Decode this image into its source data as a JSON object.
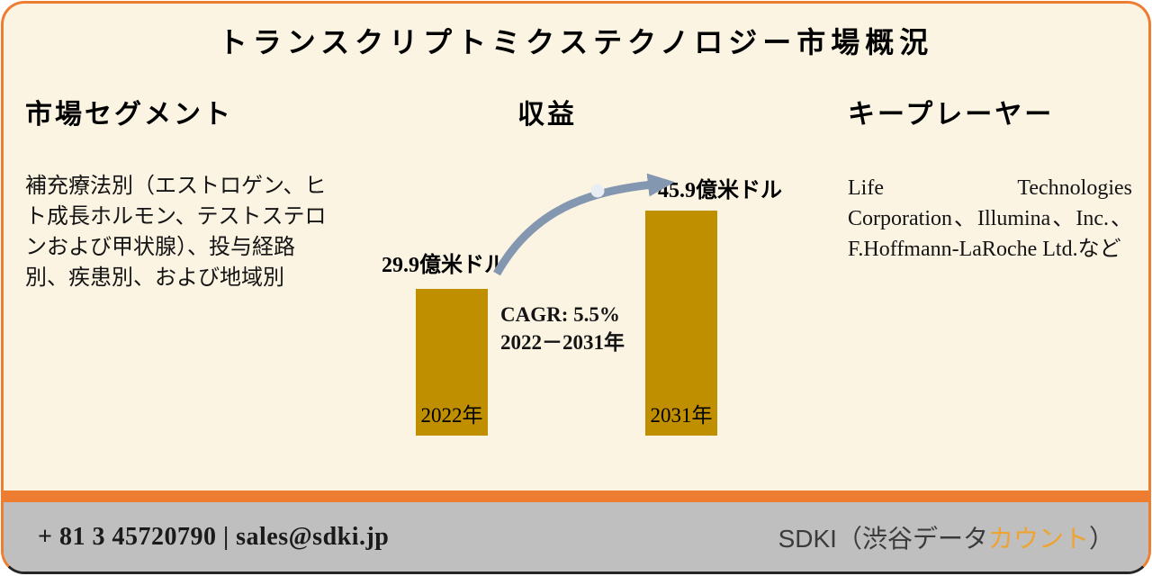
{
  "title": "トランスクリプトミクステクノロジー市場概況",
  "segments": {
    "heading": "市場セグメント",
    "body": "補充療法別（エストロゲン、ヒト成長ホルモン、テストステロンおよび甲状腺）、投与経路別、疾患別、および地域別"
  },
  "revenue": {
    "heading": "収益"
  },
  "key_players": {
    "heading": "キープレーヤー",
    "body": "Life Technologies Corporation、Illumina、Inc.、F.Hoffmann-LaRoche Ltd.など"
  },
  "chart_data": {
    "type": "bar",
    "title": "収益",
    "categories": [
      "2022年",
      "2031年"
    ],
    "values": [
      29.9,
      45.9
    ],
    "unit": "億米ドル",
    "value_labels": [
      "29.9億米ドル",
      "45.9億米ドル"
    ],
    "annotations": [
      "CAGR: 5.5%",
      "2022－2031年"
    ],
    "ylim": [
      0,
      50
    ],
    "grid": false,
    "axes_visible": false,
    "bar_color": "#BF8F00",
    "arrow_color": "#8497B0",
    "arrow_note": "curved growth arrow from 2022 bar to 2031 bar"
  },
  "footer": {
    "contact": "+ 81 3 45720790 | sales@sdki.jp",
    "brand_prefix": "SDKI（渋谷データ",
    "brand_highlight": "カウント",
    "brand_suffix": "）"
  },
  "colors": {
    "card_border": "#ED7D31",
    "card_background": "#FCF4E3",
    "bar": "#BF8F00",
    "arrow": "#8497B0",
    "footer_accent": "#ED7D31",
    "footer_background": "#BFBFBF",
    "brand_highlight": "#EFA331"
  }
}
